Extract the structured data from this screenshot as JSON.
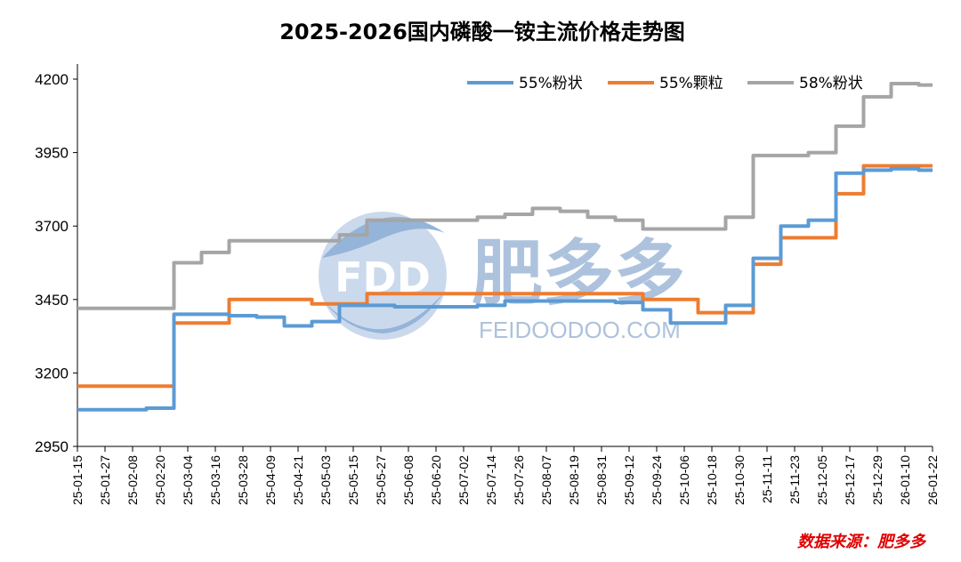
{
  "chart_data": {
    "type": "line",
    "title": "2025-2026国内磷酸一铵主流价格走势图",
    "source": "数据来源：肥多多",
    "ylim": [
      2950,
      4200
    ],
    "yticks": [
      2950,
      3200,
      3450,
      3700,
      3950,
      4200
    ],
    "grid": false,
    "legend_position": "top-right",
    "x": [
      "25-01-15",
      "25-01-27",
      "25-02-08",
      "25-02-20",
      "25-03-04",
      "25-03-16",
      "25-03-28",
      "25-04-09",
      "25-04-21",
      "25-05-03",
      "25-05-15",
      "25-05-27",
      "25-06-08",
      "25-06-20",
      "25-07-02",
      "25-07-14",
      "25-07-26",
      "25-08-07",
      "25-08-19",
      "25-08-31",
      "25-09-12",
      "25-09-24",
      "25-10-06",
      "25-10-18",
      "25-10-30",
      "25-11-11",
      "25-11-23",
      "25-12-05",
      "25-12-17",
      "25-12-29",
      "26-01-10",
      "26-01-22"
    ],
    "series": [
      {
        "name": "55%粉状",
        "color": "#5b9bd5",
        "values": [
          3075,
          3075,
          3075,
          3080,
          3400,
          3400,
          3395,
          3390,
          3360,
          3375,
          3430,
          3430,
          3425,
          3425,
          3425,
          3430,
          3445,
          3445,
          3445,
          3445,
          3440,
          3415,
          3370,
          3370,
          3430,
          3590,
          3700,
          3720,
          3880,
          3890,
          3895,
          3890
        ]
      },
      {
        "name": "55%颗粒",
        "color": "#ed7d31",
        "values": [
          3155,
          3155,
          3155,
          3155,
          3370,
          3370,
          3450,
          3450,
          3450,
          3435,
          3435,
          3470,
          3470,
          3470,
          3470,
          3470,
          3470,
          3470,
          3470,
          3470,
          3470,
          3450,
          3450,
          3405,
          3405,
          3570,
          3660,
          3660,
          3810,
          3905,
          3905,
          3905
        ]
      },
      {
        "name": "58%粉状",
        "color": "#a5a5a5",
        "values": [
          3420,
          3420,
          3420,
          3420,
          3575,
          3610,
          3650,
          3650,
          3650,
          3650,
          3670,
          3720,
          3720,
          3720,
          3720,
          3730,
          3740,
          3760,
          3750,
          3730,
          3720,
          3690,
          3690,
          3690,
          3730,
          3940,
          3940,
          3950,
          4040,
          4140,
          4185,
          4180
        ]
      }
    ]
  },
  "watermark": {
    "logo_text": "FDD",
    "brand_text": "肥多多",
    "url_text": "FEIDOODOO.COM"
  }
}
